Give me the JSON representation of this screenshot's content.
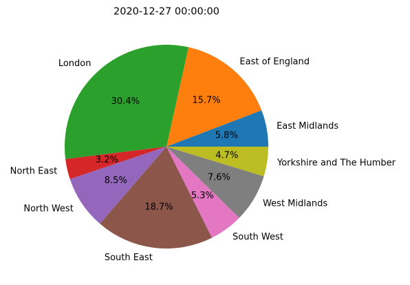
{
  "chart_data": {
    "type": "pie",
    "title": "2020-12-27 00:00:00",
    "categories": [
      "East Midlands",
      "East of England",
      "London",
      "North East",
      "North West",
      "South East",
      "South West",
      "West Midlands",
      "Yorkshire and The Humber"
    ],
    "values": [
      5.8,
      15.7,
      30.4,
      3.2,
      8.5,
      18.7,
      5.3,
      7.6,
      4.7
    ],
    "percent_labels": [
      "5.8%",
      "15.7%",
      "30.4%",
      "3.2%",
      "8.5%",
      "18.7%",
      "5.3%",
      "7.6%",
      "4.7%"
    ],
    "colors": [
      "#1f77b4",
      "#ff7f0e",
      "#2ca02c",
      "#d62728",
      "#9467bd",
      "#8c564b",
      "#e377c2",
      "#7f7f7f",
      "#bcbd22"
    ],
    "start_angle_deg": 0,
    "direction": "counterclockwise",
    "legend": "none",
    "grid": false
  }
}
